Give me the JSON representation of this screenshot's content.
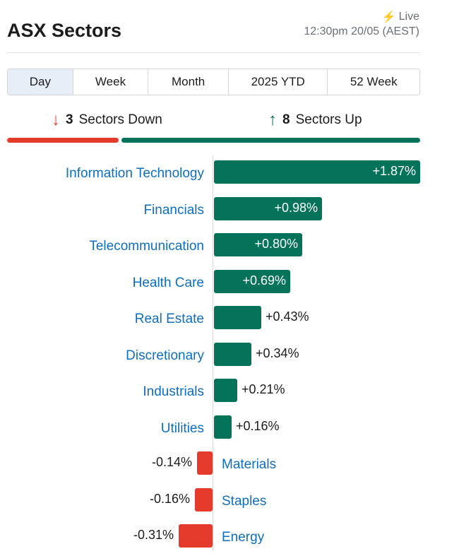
{
  "header": {
    "title": "ASX Sectors",
    "live_label": "Live",
    "timestamp": "12:30pm 20/05 (AEST)"
  },
  "tabs": [
    {
      "label": "Day",
      "active": true
    },
    {
      "label": "Week",
      "active": false
    },
    {
      "label": "Month",
      "active": false
    },
    {
      "label": "2025 YTD",
      "active": false
    },
    {
      "label": "52 Week",
      "active": false
    }
  ],
  "summary": {
    "down_count": "3",
    "down_label": "Sectors Down",
    "up_count": "8",
    "up_label": "Sectors Up"
  },
  "colors": {
    "up": "#04735a",
    "down": "#e53b2c",
    "link": "#0d6ec2"
  },
  "chart_data": {
    "type": "bar",
    "orientation": "horizontal",
    "unit": "%",
    "categories": [
      "Information Technology",
      "Financials",
      "Telecommunication",
      "Health Care",
      "Real Estate",
      "Discretionary",
      "Industrials",
      "Utilities",
      "Materials",
      "Staples",
      "Energy"
    ],
    "values": [
      1.87,
      0.98,
      0.8,
      0.69,
      0.43,
      0.34,
      0.21,
      0.16,
      -0.14,
      -0.16,
      -0.31
    ],
    "value_labels": [
      "+1.87%",
      "+0.98%",
      "+0.80%",
      "+0.69%",
      "+0.43%",
      "+0.34%",
      "+0.21%",
      "+0.16%",
      "-0.14%",
      "-0.16%",
      "-0.31%"
    ]
  }
}
